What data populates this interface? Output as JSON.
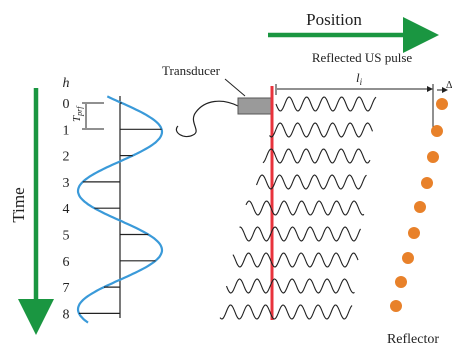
{
  "labels": {
    "position": "Position",
    "time": "Time",
    "transducer": "Transducer",
    "reflected_pulse": "Reflected US pulse",
    "reflector": "Reflector",
    "h_axis": "h",
    "t_prf": "T",
    "t_prf_sub": "prf",
    "distance_l": "l",
    "distance_l_sub": "i",
    "delta": "Δ"
  },
  "time_indices": [
    "0",
    "1",
    "2",
    "3",
    "4",
    "5",
    "6",
    "7",
    "8"
  ],
  "samples": [
    0.2,
    1.0,
    0.7,
    -0.5,
    -1.0,
    -0.2,
    0.8,
    0.5,
    -0.3
  ],
  "colors": {
    "arrow_green": "#1a9641",
    "transducer_line": "#e8333c",
    "reflector_dot": "#e8812a",
    "wave_blue": "#3a9ad9",
    "ink": "#222222"
  }
}
